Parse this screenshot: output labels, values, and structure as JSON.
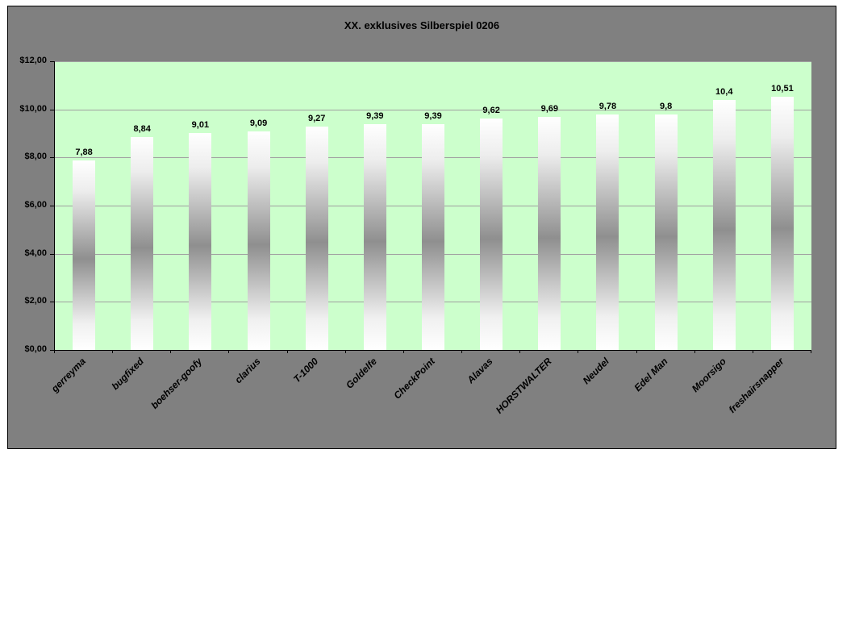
{
  "chart_data": {
    "type": "bar",
    "title": "XX. exklusives Silberspiel 0206",
    "categories": [
      "gerreyma",
      "bugfixed",
      "boehser-goofy",
      "clarius",
      "T-1000",
      "Goldelfe",
      "CheckPoint",
      "Alavas",
      "HORSTWALTER",
      "Neudel",
      "Edel Man",
      "Moorsigo",
      "freshairsnapper"
    ],
    "values": [
      7.88,
      8.84,
      9.01,
      9.09,
      9.27,
      9.39,
      9.39,
      9.62,
      9.69,
      9.78,
      9.8,
      10.4,
      10.51
    ],
    "value_labels": [
      "7,88",
      "8,84",
      "9,01",
      "9,09",
      "9,27",
      "9,39",
      "9,39",
      "9,62",
      "9,69",
      "9,78",
      "9,8",
      "10,4",
      "10,51"
    ],
    "xlabel": "",
    "ylabel": "",
    "ylim": [
      0,
      12
    ],
    "ytick_step": 2,
    "ytick_labels": [
      "$0,00",
      "$2,00",
      "$4,00",
      "$6,00",
      "$8,00",
      "$10,00",
      "$12,00"
    ],
    "grid": true,
    "legend": "none",
    "colors": {
      "frame_background": "#808080",
      "plot_background": "#ccffcc",
      "bar_edge": "#ffffff",
      "bar_mid": "#8f8f8f",
      "gridline": "#a0a0a0",
      "axis": "#000000",
      "text": "#000000"
    }
  }
}
